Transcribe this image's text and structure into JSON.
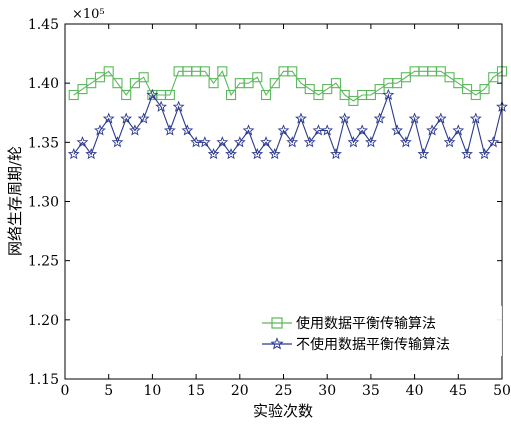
{
  "chart_data": {
    "type": "line",
    "title": "",
    "xlabel": "实验次数",
    "ylabel": "网络生存周期/轮",
    "y_multiplier": "×10⁵",
    "xlim": [
      0,
      50
    ],
    "ylim": [
      1.15,
      1.45
    ],
    "x_ticks": [
      0,
      5,
      10,
      15,
      20,
      25,
      30,
      35,
      40,
      45,
      50
    ],
    "y_ticks": [
      "1.15",
      "1.20",
      "1.25",
      "1.30",
      "1.35",
      "1.40",
      "1.45"
    ],
    "grid": false,
    "legend_position": "bottom-right",
    "x": [
      1,
      2,
      3,
      4,
      5,
      6,
      7,
      8,
      9,
      10,
      11,
      12,
      13,
      14,
      15,
      16,
      17,
      18,
      19,
      20,
      21,
      22,
      23,
      24,
      25,
      26,
      27,
      28,
      29,
      30,
      31,
      32,
      33,
      34,
      35,
      36,
      37,
      38,
      39,
      40,
      41,
      42,
      43,
      44,
      45,
      46,
      47,
      48,
      49,
      50
    ],
    "series": [
      {
        "name": "使用数据平衡传输算法",
        "color": "#5cb85c",
        "marker": "square",
        "values": [
          1.39,
          1.395,
          1.4,
          1.405,
          1.41,
          1.4,
          1.39,
          1.4,
          1.405,
          1.39,
          1.39,
          1.39,
          1.41,
          1.41,
          1.41,
          1.41,
          1.4,
          1.41,
          1.39,
          1.4,
          1.4,
          1.405,
          1.39,
          1.4,
          1.41,
          1.41,
          1.4,
          1.395,
          1.39,
          1.395,
          1.4,
          1.39,
          1.385,
          1.39,
          1.39,
          1.395,
          1.4,
          1.4,
          1.405,
          1.41,
          1.41,
          1.41,
          1.41,
          1.405,
          1.4,
          1.395,
          1.39,
          1.395,
          1.405,
          1.41
        ]
      },
      {
        "name": "不使用数据平衡传输算法",
        "color": "#2b3990",
        "marker": "star",
        "values": [
          1.34,
          1.35,
          1.34,
          1.36,
          1.37,
          1.35,
          1.37,
          1.36,
          1.37,
          1.39,
          1.38,
          1.36,
          1.38,
          1.36,
          1.35,
          1.35,
          1.34,
          1.35,
          1.34,
          1.35,
          1.36,
          1.34,
          1.35,
          1.34,
          1.36,
          1.35,
          1.37,
          1.35,
          1.36,
          1.36,
          1.34,
          1.37,
          1.35,
          1.36,
          1.35,
          1.37,
          1.39,
          1.36,
          1.35,
          1.37,
          1.34,
          1.36,
          1.37,
          1.35,
          1.36,
          1.34,
          1.37,
          1.34,
          1.35,
          1.38
        ]
      }
    ]
  }
}
